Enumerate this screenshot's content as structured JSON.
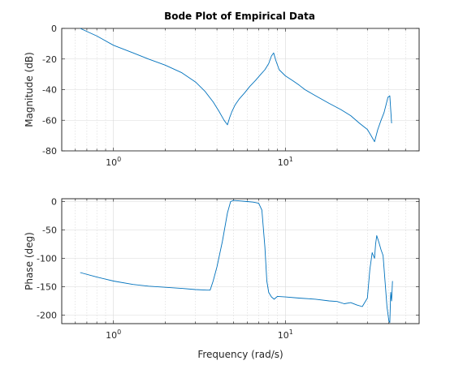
{
  "chart_data": [
    {
      "type": "line",
      "title": "Bode Plot of Empirical Data",
      "xlabel": "",
      "ylabel": "Magnitude (dB)",
      "xscale": "log",
      "xlim": [
        0.5,
        60
      ],
      "ylim": [
        -80,
        0
      ],
      "yticks": [
        0,
        -20,
        -40,
        -60,
        -80
      ],
      "xticks": [
        1,
        10
      ],
      "xtick_labels": [
        {
          "base": "10",
          "exp": "0"
        },
        {
          "base": "10",
          "exp": "1"
        }
      ],
      "grid": true,
      "series": [
        {
          "color": "#0072BD",
          "x": [
            0.64,
            0.8,
            1.0,
            1.3,
            1.6,
            2.0,
            2.5,
            3.0,
            3.4,
            3.8,
            4.1,
            4.4,
            4.6,
            4.75,
            4.9,
            5.1,
            5.4,
            5.8,
            6.2,
            6.7,
            7.2,
            7.6,
            8.0,
            8.3,
            8.55,
            8.8,
            9.2,
            10.0,
            11.0,
            12.0,
            13.0,
            15.0,
            18.0,
            21.0,
            24.0,
            27.0,
            30.0,
            31.5,
            33.0,
            34.5,
            36.0,
            37.5,
            38.5,
            39.5,
            40.5,
            41.5
          ],
          "y": [
            0,
            -5,
            -11,
            -16,
            -20,
            -24,
            -29,
            -35,
            -41,
            -48,
            -54,
            -60,
            -63,
            -58,
            -54,
            -50,
            -46,
            -42,
            -38,
            -34,
            -30,
            -27,
            -23,
            -18,
            -16,
            -21,
            -27,
            -31,
            -34,
            -37,
            -40,
            -44,
            -49,
            -53,
            -57,
            -62,
            -66,
            -70,
            -74,
            -66,
            -60,
            -55,
            -50,
            -45,
            -44,
            -62
          ]
        }
      ]
    },
    {
      "type": "line",
      "title": "",
      "xlabel": "Frequency (rad/s)",
      "ylabel": "Phase (deg)",
      "xscale": "log",
      "xlim": [
        0.5,
        60
      ],
      "ylim": [
        -215,
        5
      ],
      "yticks": [
        0,
        -50,
        -100,
        -150,
        -200
      ],
      "xticks": [
        1,
        10
      ],
      "xtick_labels": [
        {
          "base": "10",
          "exp": "0"
        },
        {
          "base": "10",
          "exp": "1"
        }
      ],
      "grid": true,
      "series": [
        {
          "color": "#0072BD",
          "x": [
            0.64,
            0.8,
            1.0,
            1.3,
            1.6,
            2.0,
            2.5,
            3.0,
            3.5,
            3.65,
            3.8,
            4.0,
            4.3,
            4.6,
            4.8,
            5.0,
            5.5,
            6.0,
            6.5,
            7.0,
            7.3,
            7.6,
            7.8,
            8.0,
            8.3,
            8.6,
            9.0,
            10.0,
            12.0,
            15.0,
            18.0,
            20.0,
            22.0,
            24.0,
            26.0,
            28.0,
            30.0,
            31.0,
            32.0,
            33.0,
            33.5,
            34.0,
            35.0,
            36.0,
            37.0,
            38.0,
            39.0,
            40.0,
            40.5,
            41.0,
            41.5,
            42.0
          ],
          "y": [
            -125,
            -133,
            -140,
            -146,
            -149,
            -151,
            -153,
            -155,
            -156,
            -156,
            -140,
            -115,
            -70,
            -20,
            0,
            2,
            1,
            0,
            -1,
            -3,
            -15,
            -80,
            -140,
            -160,
            -168,
            -172,
            -167,
            -168,
            -170,
            -172,
            -175,
            -176,
            -180,
            -178,
            -182,
            -185,
            -170,
            -120,
            -90,
            -100,
            -75,
            -60,
            -72,
            -85,
            -95,
            -140,
            -185,
            -210,
            -213,
            -160,
            -175,
            -140
          ]
        }
      ]
    }
  ]
}
